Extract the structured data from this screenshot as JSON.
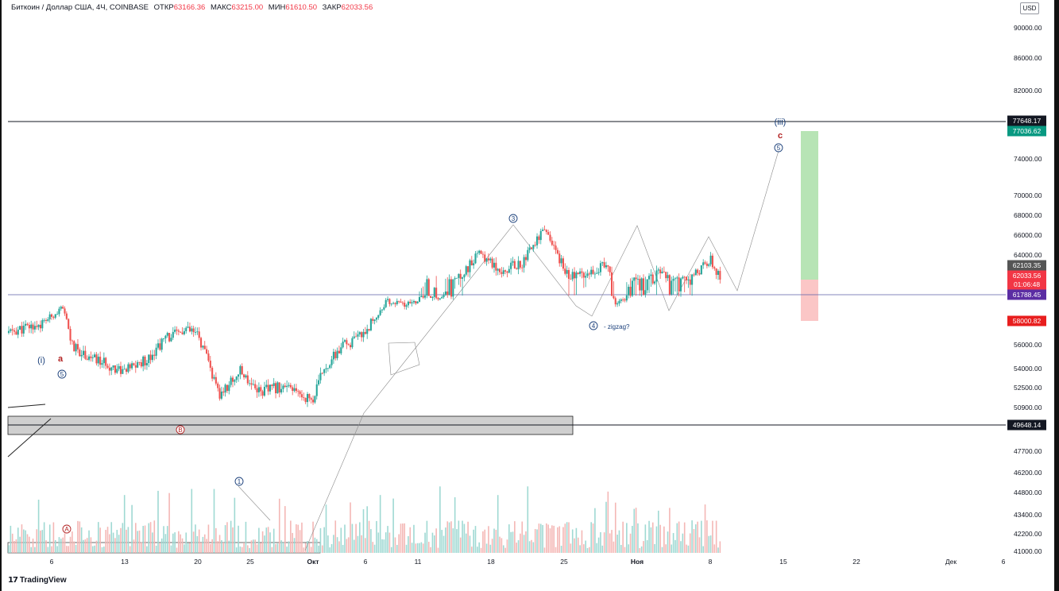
{
  "header": {
    "symbol": "Биткоин / Доллар США, 4Ч, COINBASE",
    "open_label": "ОТКР",
    "open_value": "63166.36",
    "high_label": "МАКС",
    "high_value": "63215.00",
    "low_label": "МИН",
    "low_value": "61610.50",
    "close_label": "ЗАКР",
    "close_value": "62033.56"
  },
  "currency": "USD",
  "branding": {
    "logo": "TradingView"
  },
  "chart_data": {
    "type": "candlestick",
    "title": "Биткоин / Доллар США, 4Ч, COINBASE",
    "y_axis": {
      "position": "right",
      "ticks": [
        "41000.00",
        "42200.00",
        "43400.00",
        "44800.00",
        "46200.00",
        "47700.00",
        "50900.00",
        "52500.00",
        "54000.00",
        "56000.00",
        "64000.00",
        "66000.00",
        "68000.00",
        "70000.00",
        "74000.00",
        "82000.00",
        "86000.00",
        "90000.00"
      ]
    },
    "x_axis": {
      "ticks": [
        {
          "label": "6",
          "date": "2024-09-06"
        },
        {
          "label": "13",
          "date": "2024-09-13"
        },
        {
          "label": "20",
          "date": "2024-09-20"
        },
        {
          "label": "25",
          "date": "2024-09-25"
        },
        {
          "label": "Окт",
          "date": "2024-10-01"
        },
        {
          "label": "6",
          "date": "2024-10-06"
        },
        {
          "label": "11",
          "date": "2024-10-11"
        },
        {
          "label": "18",
          "date": "2024-10-18"
        },
        {
          "label": "25",
          "date": "2024-10-25"
        },
        {
          "label": "Ноя",
          "date": "2024-11-01"
        },
        {
          "label": "8",
          "date": "2024-11-08"
        },
        {
          "label": "15",
          "date": "2024-11-15"
        },
        {
          "label": "22",
          "date": "2024-11-22"
        },
        {
          "label": "Дек",
          "date": "2024-12-01"
        },
        {
          "label": "6",
          "date": "2024-12-06"
        }
      ]
    },
    "price_path": [
      [
        "2024-09-01",
        57000
      ],
      [
        "2024-09-05",
        57800
      ],
      [
        "2024-09-07",
        59800
      ],
      [
        "2024-09-08",
        55800
      ],
      [
        "2024-09-10",
        54800
      ],
      [
        "2024-09-13",
        53800
      ],
      [
        "2024-09-15",
        54700
      ],
      [
        "2024-09-17",
        56600
      ],
      [
        "2024-09-19",
        57200
      ],
      [
        "2024-09-20",
        56800
      ],
      [
        "2024-09-21",
        54500
      ],
      [
        "2024-09-22",
        51800
      ],
      [
        "2024-09-24",
        53800
      ],
      [
        "2024-09-26",
        52200
      ],
      [
        "2024-09-28",
        52600
      ],
      [
        "2024-10-01",
        51500
      ],
      [
        "2024-10-02",
        54000
      ],
      [
        "2024-10-04",
        56000
      ],
      [
        "2024-10-05",
        56300
      ],
      [
        "2024-10-06",
        57200
      ],
      [
        "2024-10-07",
        58500
      ],
      [
        "2024-10-08",
        60800
      ],
      [
        "2024-10-10",
        60300
      ],
      [
        "2024-10-12",
        61800
      ],
      [
        "2024-10-13",
        61300
      ],
      [
        "2024-10-15",
        62200
      ],
      [
        "2024-10-17",
        64200
      ],
      [
        "2024-10-19",
        62800
      ],
      [
        "2024-10-21",
        63400
      ],
      [
        "2024-10-23",
        66500
      ],
      [
        "2024-10-24",
        64800
      ],
      [
        "2024-10-25",
        62800
      ],
      [
        "2024-10-26",
        62200
      ],
      [
        "2024-10-27",
        62700
      ],
      [
        "2024-10-29",
        63200
      ],
      [
        "2024-10-30",
        60600
      ],
      [
        "2024-11-01",
        62100
      ],
      [
        "2024-11-03",
        62500
      ],
      [
        "2024-11-05",
        61700
      ],
      [
        "2024-11-07",
        62900
      ],
      [
        "2024-11-08",
        63700
      ],
      [
        "2024-11-09",
        62033.56
      ]
    ],
    "levels": [
      {
        "label": "77648.17",
        "value": 77648.17,
        "style": "black line"
      },
      {
        "label": "77036.62",
        "value": 77036.62,
        "style": "green target"
      },
      {
        "label": "62103.35",
        "value": 62103.35,
        "style": "grey"
      },
      {
        "label": "62033.56",
        "value": 62033.56,
        "style": "red current price"
      },
      {
        "label": "01:06:48",
        "style": "countdown"
      },
      {
        "label": "61788.45",
        "value": 61788.45,
        "style": "purple line"
      },
      {
        "label": "58000.82",
        "value": 58000.82,
        "style": "red stop"
      },
      {
        "label": "49648.14",
        "value": 49648.14,
        "style": "black line"
      }
    ],
    "annotations": {
      "wave_i": "(i)",
      "wave_a": "a",
      "wave_5_left": "5",
      "wave_A": "A",
      "wave_B": "B",
      "wave_1": "1",
      "wave_3": "3",
      "wave_4": "4",
      "zigzag_note": "- zigzag?",
      "wave_iii": "(iii)",
      "wave_c": "c",
      "wave_5_right": "5"
    },
    "colors": {
      "bull": "#26a69a",
      "bear": "#ef5350",
      "level_line": "#131722",
      "green_label": "#089981",
      "red_label": "#f23645",
      "purple_label": "#5b2da3",
      "grey_label": "#555555",
      "wave_blue": "#1a3f7a",
      "wave_red": "#b22222",
      "target_zone": "#b7e4b5",
      "stop_zone": "#fbc6c6",
      "demand_zone": "#cfcfcf"
    },
    "grid": false,
    "legend": "none"
  }
}
